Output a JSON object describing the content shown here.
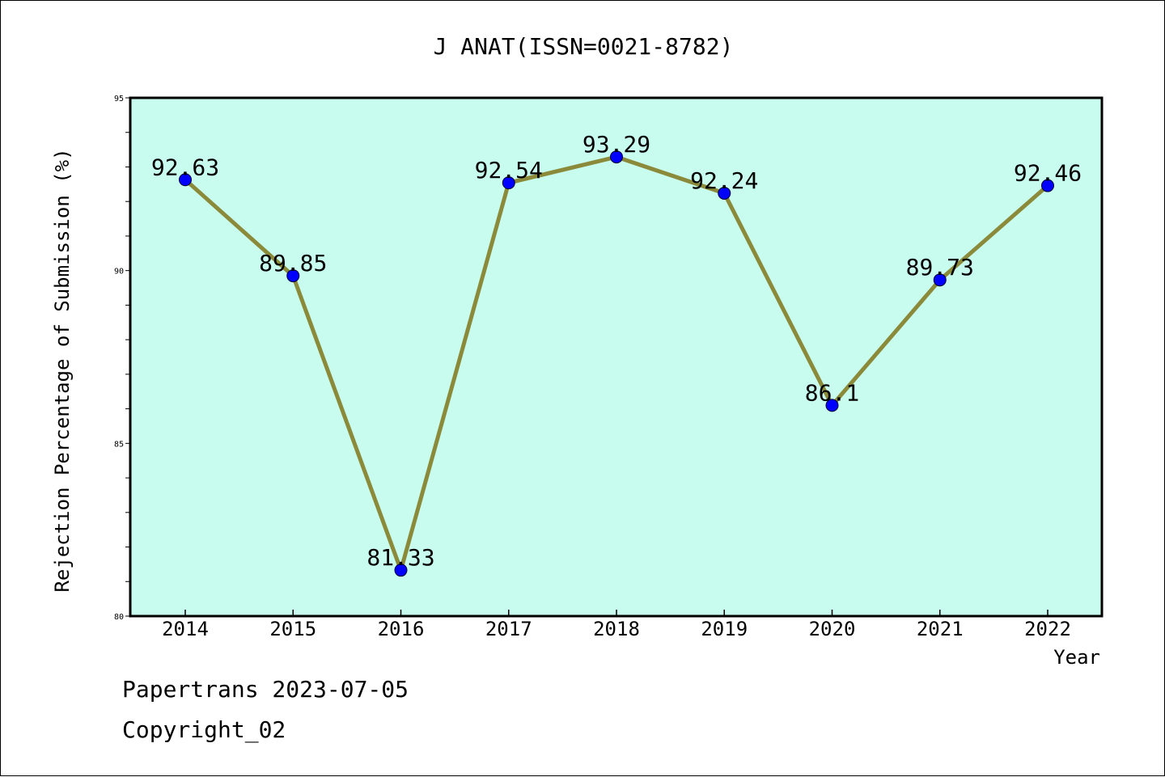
{
  "chart_data": {
    "type": "line",
    "title": "J ANAT(ISSN=0021-8782)",
    "xlabel": "Year",
    "ylabel": "Rejection Percentage of Submission (%)",
    "categories": [
      "2014",
      "2015",
      "2016",
      "2017",
      "2018",
      "2019",
      "2020",
      "2021",
      "2022"
    ],
    "values": [
      92.63,
      89.85,
      81.33,
      92.54,
      93.29,
      92.24,
      86.1,
      89.73,
      92.46
    ],
    "data_labels": [
      "92.63",
      "89.85",
      "81.33",
      "92.54",
      "93.29",
      "92.24",
      "86.1",
      "89.73",
      "92.46"
    ],
    "ylim": [
      80,
      95
    ],
    "yticks": [
      80,
      85,
      90,
      95
    ],
    "ytick_labels": [
      "80",
      "85",
      "90",
      "95"
    ],
    "grid": false,
    "colors": {
      "plot_background": "#c8fcee",
      "line": "#8b8a3a",
      "marker": "#0000ff",
      "frame": "#000000"
    }
  },
  "footer": {
    "line1": "Papertrans 2023-07-05",
    "line2": "Copyright_02"
  }
}
